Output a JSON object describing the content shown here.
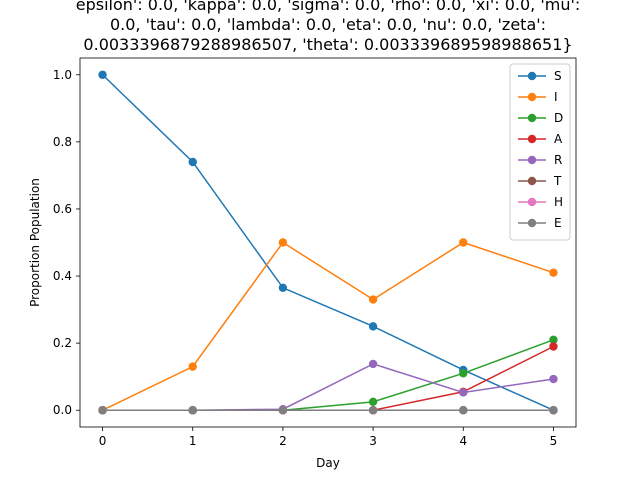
{
  "chart_data": {
    "type": "line",
    "title_lines": [
      "epsilon': 0.0, 'kappa': 0.0, 'sigma': 0.0, 'rho': 0.0, 'xi': 0.0, 'mu':",
      "0.0, 'tau': 0.0, 'lambda': 0.0, 'eta': 0.0, 'nu': 0.0, 'zeta':",
      "0.003339687928898650​7, 'theta': 0.003339689598988651}"
    ],
    "xlabel": "Day",
    "ylabel": "Proportion Population",
    "x": [
      0,
      1,
      2,
      3,
      4,
      5
    ],
    "xticks": [
      "0",
      "1",
      "2",
      "3",
      "4",
      "5"
    ],
    "yticks": [
      "0.0",
      "0.2",
      "0.4",
      "0.6",
      "0.8",
      "1.0"
    ],
    "xlim": [
      -0.25,
      5.25
    ],
    "ylim": [
      -0.05,
      1.05
    ],
    "legend_position": "upper right",
    "series": [
      {
        "name": "S",
        "color": "#1f77b4",
        "values": [
          1.0,
          0.74,
          0.365,
          0.25,
          0.12,
          0.0
        ]
      },
      {
        "name": "I",
        "color": "#ff7f0e",
        "values": [
          0.0,
          0.13,
          0.5,
          0.33,
          0.5,
          0.41
        ]
      },
      {
        "name": "D",
        "color": "#2ca02c",
        "values": [
          0.0,
          0.0,
          0.0,
          0.025,
          0.11,
          0.21
        ]
      },
      {
        "name": "A",
        "color": "#d62728",
        "values": [
          0.0,
          0.0,
          0.0,
          0.0,
          0.055,
          0.19
        ]
      },
      {
        "name": "R",
        "color": "#9467bd",
        "values": [
          0.0,
          0.0,
          0.003,
          0.138,
          0.053,
          0.093
        ]
      },
      {
        "name": "T",
        "color": "#8c564b",
        "values": [
          0.0,
          0.0,
          0.0,
          0.0,
          0.0,
          0.0
        ]
      },
      {
        "name": "H",
        "color": "#e377c2",
        "values": [
          0.0,
          0.0,
          0.0,
          0.0,
          0.0,
          0.0
        ]
      },
      {
        "name": "E",
        "color": "#7f7f7f",
        "values": [
          0.0,
          0.0,
          0.0,
          0.0,
          0.0,
          0.0
        ]
      }
    ]
  }
}
